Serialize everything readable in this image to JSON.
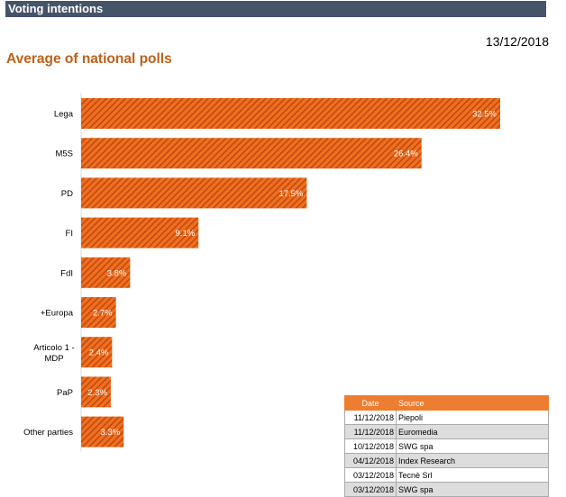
{
  "header": {
    "title": "Voting intentions",
    "date": "13/12/2018"
  },
  "chart_data": {
    "type": "bar",
    "orientation": "horizontal",
    "title": "Average of national polls",
    "categories": [
      "Lega",
      "M5S",
      "PD",
      "FI",
      "FdI",
      "+Europa",
      "Articolo 1 - MDP",
      "PaP",
      "Other parties"
    ],
    "values": [
      32.5,
      26.4,
      17.5,
      9.1,
      3.8,
      2.7,
      2.4,
      2.3,
      3.3
    ],
    "labels": [
      "32.5%",
      "26.4%",
      "17.5%",
      "9.1%",
      "3.8%",
      "2.7%",
      "2.4%",
      "2.3%",
      "3.3%"
    ],
    "bar_color": "#f07020",
    "hatch_color": "#c04a10"
  },
  "sources": {
    "headers": [
      "Date",
      "Source"
    ],
    "rows": [
      [
        "11/12/2018",
        "Piepoli"
      ],
      [
        "11/12/2018",
        "Euromedia"
      ],
      [
        "10/12/2018",
        "SWG spa"
      ],
      [
        "04/12/2018",
        "Index Research"
      ],
      [
        "03/12/2018",
        "Tecnè Srl"
      ],
      [
        "03/12/2018",
        "SWG spa"
      ]
    ]
  }
}
